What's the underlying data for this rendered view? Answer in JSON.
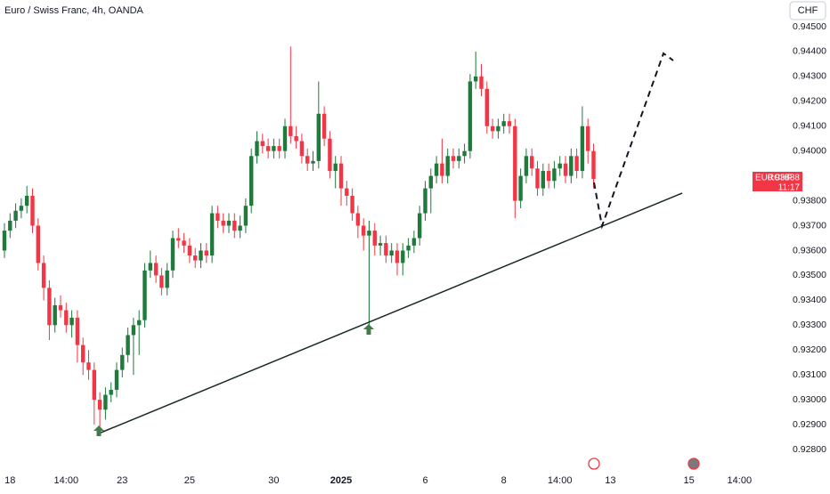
{
  "chart_data": {
    "type": "candlestick",
    "title": "Euro / Swiss Franc, 4h, OANDA",
    "currency": "CHF",
    "symbol": "EURCHF",
    "last_price": {
      "value": 0.93888,
      "label": "0.93888"
    },
    "countdown": "11:17",
    "up_color": "#1f7a3c",
    "down_color": "#f23645",
    "grid": false,
    "ylim": [
      0.9272,
      0.9455
    ],
    "yticks": [
      {
        "value": 0.945,
        "label": "0.94500"
      },
      {
        "value": 0.944,
        "label": "0.94400"
      },
      {
        "value": 0.943,
        "label": "0.94300"
      },
      {
        "value": 0.942,
        "label": "0.94200"
      },
      {
        "value": 0.941,
        "label": "0.94100"
      },
      {
        "value": 0.94,
        "label": "0.94000"
      },
      {
        "value": 0.938,
        "label": "0.93800"
      },
      {
        "value": 0.937,
        "label": "0.93700"
      },
      {
        "value": 0.936,
        "label": "0.93600"
      },
      {
        "value": 0.935,
        "label": "0.93500"
      },
      {
        "value": 0.934,
        "label": "0.93400"
      },
      {
        "value": 0.933,
        "label": "0.93300"
      },
      {
        "value": 0.932,
        "label": "0.93200"
      },
      {
        "value": 0.931,
        "label": "0.93100"
      },
      {
        "value": 0.93,
        "label": "0.93000"
      },
      {
        "value": 0.929,
        "label": "0.92900"
      },
      {
        "value": 0.928,
        "label": "0.92800"
      }
    ],
    "xticks": [
      {
        "value": 1,
        "label": "18"
      },
      {
        "value": 11,
        "label": "14:00"
      },
      {
        "value": 21,
        "label": "23"
      },
      {
        "value": 33,
        "label": "25"
      },
      {
        "value": 48,
        "label": "30"
      },
      {
        "value": 60,
        "label": "2025"
      },
      {
        "value": 75,
        "label": "6"
      },
      {
        "value": 89,
        "label": "8"
      },
      {
        "value": 99,
        "label": "14:00"
      },
      {
        "value": 108,
        "label": "13"
      },
      {
        "value": 122,
        "label": "15"
      },
      {
        "value": 131,
        "label": "14:00"
      }
    ],
    "ohlc": [
      [
        0.936,
        0.9371,
        0.9357,
        0.9368
      ],
      [
        0.9368,
        0.9375,
        0.9365,
        0.9372
      ],
      [
        0.9372,
        0.9379,
        0.9369,
        0.9376
      ],
      [
        0.9376,
        0.9381,
        0.9373,
        0.9378
      ],
      [
        0.9378,
        0.9386,
        0.9375,
        0.9382
      ],
      [
        0.9382,
        0.9385,
        0.9367,
        0.937
      ],
      [
        0.937,
        0.9373,
        0.9352,
        0.9355
      ],
      [
        0.9355,
        0.9358,
        0.934,
        0.9345
      ],
      [
        0.9345,
        0.9348,
        0.9324,
        0.933
      ],
      [
        0.933,
        0.9341,
        0.9327,
        0.9338
      ],
      [
        0.9338,
        0.9342,
        0.9333,
        0.9336
      ],
      [
        0.9336,
        0.9339,
        0.9327,
        0.933
      ],
      [
        0.933,
        0.9336,
        0.9325,
        0.9333
      ],
      [
        0.9333,
        0.9336,
        0.9315,
        0.9322
      ],
      [
        0.9322,
        0.9325,
        0.931,
        0.9315
      ],
      [
        0.9315,
        0.932,
        0.9308,
        0.9312
      ],
      [
        0.9312,
        0.9315,
        0.929,
        0.93
      ],
      [
        0.93,
        0.9303,
        0.9288,
        0.9296
      ],
      [
        0.9296,
        0.9305,
        0.9292,
        0.9302
      ],
      [
        0.9302,
        0.9307,
        0.9299,
        0.9304
      ],
      [
        0.9304,
        0.9315,
        0.9301,
        0.9312
      ],
      [
        0.9312,
        0.9321,
        0.9309,
        0.9318
      ],
      [
        0.9318,
        0.9329,
        0.9315,
        0.9326
      ],
      [
        0.9326,
        0.9333,
        0.931,
        0.933
      ],
      [
        0.933,
        0.9336,
        0.9318,
        0.9332
      ],
      [
        0.9332,
        0.9355,
        0.9329,
        0.9352
      ],
      [
        0.9352,
        0.936,
        0.9349,
        0.9355
      ],
      [
        0.9355,
        0.9358,
        0.9347,
        0.935
      ],
      [
        0.935,
        0.9353,
        0.9342,
        0.9345
      ],
      [
        0.9345,
        0.9355,
        0.9342,
        0.9352
      ],
      [
        0.9352,
        0.9368,
        0.9349,
        0.9365
      ],
      [
        0.9365,
        0.9369,
        0.9361,
        0.9364
      ],
      [
        0.9364,
        0.9367,
        0.9359,
        0.9362
      ],
      [
        0.9362,
        0.9365,
        0.9355,
        0.9358
      ],
      [
        0.9358,
        0.9361,
        0.9353,
        0.9356
      ],
      [
        0.9356,
        0.9363,
        0.9353,
        0.936
      ],
      [
        0.936,
        0.9363,
        0.9355,
        0.9358
      ],
      [
        0.9358,
        0.9378,
        0.9355,
        0.9375
      ],
      [
        0.9375,
        0.9378,
        0.9369,
        0.9372
      ],
      [
        0.9372,
        0.9375,
        0.9367,
        0.937
      ],
      [
        0.937,
        0.9375,
        0.9367,
        0.9372
      ],
      [
        0.9372,
        0.9375,
        0.9365,
        0.9368
      ],
      [
        0.9368,
        0.9374,
        0.9365,
        0.937
      ],
      [
        0.937,
        0.9381,
        0.9367,
        0.9378
      ],
      [
        0.9378,
        0.9401,
        0.9375,
        0.9398
      ],
      [
        0.9398,
        0.9408,
        0.9395,
        0.9404
      ],
      [
        0.9404,
        0.9407,
        0.9399,
        0.9402
      ],
      [
        0.9402,
        0.9405,
        0.9397,
        0.94
      ],
      [
        0.94,
        0.9405,
        0.9397,
        0.9402
      ],
      [
        0.9402,
        0.9405,
        0.9397,
        0.94
      ],
      [
        0.94,
        0.9413,
        0.9397,
        0.941
      ],
      [
        0.941,
        0.9442,
        0.9403,
        0.9406
      ],
      [
        0.9406,
        0.941,
        0.9401,
        0.9404
      ],
      [
        0.9404,
        0.9407,
        0.9395,
        0.9398
      ],
      [
        0.9398,
        0.9401,
        0.9392,
        0.9395
      ],
      [
        0.9395,
        0.94,
        0.9392,
        0.9396
      ],
      [
        0.9396,
        0.9428,
        0.9393,
        0.9415
      ],
      [
        0.9415,
        0.9418,
        0.9402,
        0.9405
      ],
      [
        0.9405,
        0.9408,
        0.9389,
        0.9392
      ],
      [
        0.9392,
        0.9398,
        0.9385,
        0.9395
      ],
      [
        0.9395,
        0.9398,
        0.9378,
        0.9385
      ],
      [
        0.9385,
        0.9388,
        0.9378,
        0.9382
      ],
      [
        0.9382,
        0.9385,
        0.9372,
        0.9375
      ],
      [
        0.9375,
        0.9378,
        0.9365,
        0.937
      ],
      [
        0.937,
        0.9373,
        0.936,
        0.9366
      ],
      [
        0.9366,
        0.9372,
        0.933,
        0.9368
      ],
      [
        0.9368,
        0.9371,
        0.9358,
        0.9362
      ],
      [
        0.9362,
        0.9366,
        0.9358,
        0.9363
      ],
      [
        0.9363,
        0.9366,
        0.9355,
        0.9358
      ],
      [
        0.9358,
        0.9363,
        0.9355,
        0.936
      ],
      [
        0.936,
        0.9363,
        0.935,
        0.9355
      ],
      [
        0.9355,
        0.9363,
        0.935,
        0.936
      ],
      [
        0.936,
        0.9365,
        0.9357,
        0.9362
      ],
      [
        0.9362,
        0.9368,
        0.9359,
        0.9365
      ],
      [
        0.9365,
        0.9378,
        0.9362,
        0.9375
      ],
      [
        0.9375,
        0.9388,
        0.9372,
        0.9385
      ],
      [
        0.9385,
        0.9393,
        0.9375,
        0.939
      ],
      [
        0.939,
        0.9398,
        0.9387,
        0.9395
      ],
      [
        0.9395,
        0.9405,
        0.9387,
        0.939
      ],
      [
        0.939,
        0.9401,
        0.9387,
        0.9398
      ],
      [
        0.9398,
        0.9401,
        0.9393,
        0.9396
      ],
      [
        0.9396,
        0.9401,
        0.9393,
        0.9398
      ],
      [
        0.9398,
        0.9403,
        0.9395,
        0.94
      ],
      [
        0.94,
        0.9431,
        0.9397,
        0.9428
      ],
      [
        0.9428,
        0.944,
        0.9425,
        0.943
      ],
      [
        0.943,
        0.9435,
        0.9422,
        0.9425
      ],
      [
        0.9425,
        0.9428,
        0.9407,
        0.941
      ],
      [
        0.941,
        0.9413,
        0.9405,
        0.9408
      ],
      [
        0.9408,
        0.9413,
        0.9405,
        0.941
      ],
      [
        0.941,
        0.9415,
        0.9407,
        0.9412
      ],
      [
        0.9412,
        0.9415,
        0.9407,
        0.941
      ],
      [
        0.941,
        0.9413,
        0.9373,
        0.938
      ],
      [
        0.938,
        0.9393,
        0.9377,
        0.939
      ],
      [
        0.939,
        0.9401,
        0.9387,
        0.9398
      ],
      [
        0.9398,
        0.9401,
        0.939,
        0.9393
      ],
      [
        0.9393,
        0.9396,
        0.9382,
        0.9385
      ],
      [
        0.9385,
        0.9395,
        0.9382,
        0.9392
      ],
      [
        0.9392,
        0.9395,
        0.9385,
        0.9388
      ],
      [
        0.9388,
        0.9396,
        0.9385,
        0.9393
      ],
      [
        0.9393,
        0.9398,
        0.939,
        0.9395
      ],
      [
        0.9395,
        0.9398,
        0.9387,
        0.939
      ],
      [
        0.939,
        0.9401,
        0.9387,
        0.9398
      ],
      [
        0.9398,
        0.9401,
        0.9389,
        0.9392
      ],
      [
        0.9392,
        0.9418,
        0.9389,
        0.941
      ],
      [
        0.941,
        0.9413,
        0.9395,
        0.94
      ],
      [
        0.94,
        0.9403,
        0.9385,
        0.93888
      ]
    ]
  }
}
